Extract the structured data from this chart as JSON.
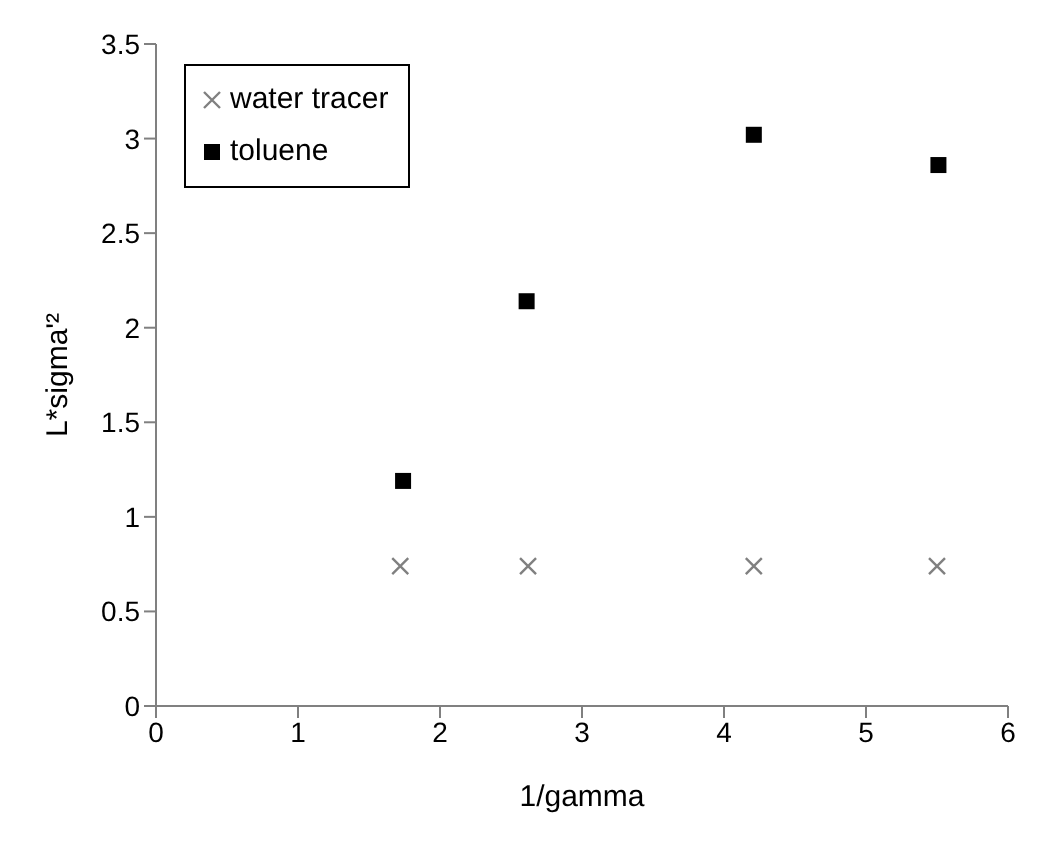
{
  "chart_data": {
    "type": "scatter",
    "xlabel": "1/gamma",
    "ylabel": "L*sigma'²",
    "xlim": [
      0,
      6
    ],
    "xticks": [
      0,
      1,
      2,
      3,
      4,
      5,
      6
    ],
    "ylim": [
      0,
      3.5
    ],
    "yticks": [
      0,
      0.5,
      1,
      1.5,
      2,
      2.5,
      3,
      3.5
    ],
    "grid": false,
    "legend": "top left",
    "series": [
      {
        "name": "water tracer",
        "color": "#808080",
        "marker": "cross",
        "x": [
          1.72,
          2.62,
          4.21,
          5.5
        ],
        "values": [
          0.74,
          0.74,
          0.74,
          0.74
        ]
      },
      {
        "name": "toluene",
        "color": "#000000",
        "marker": "square",
        "x": [
          1.74,
          2.61,
          4.21,
          5.51
        ],
        "values": [
          1.19,
          2.14,
          3.02,
          2.86
        ]
      }
    ]
  }
}
